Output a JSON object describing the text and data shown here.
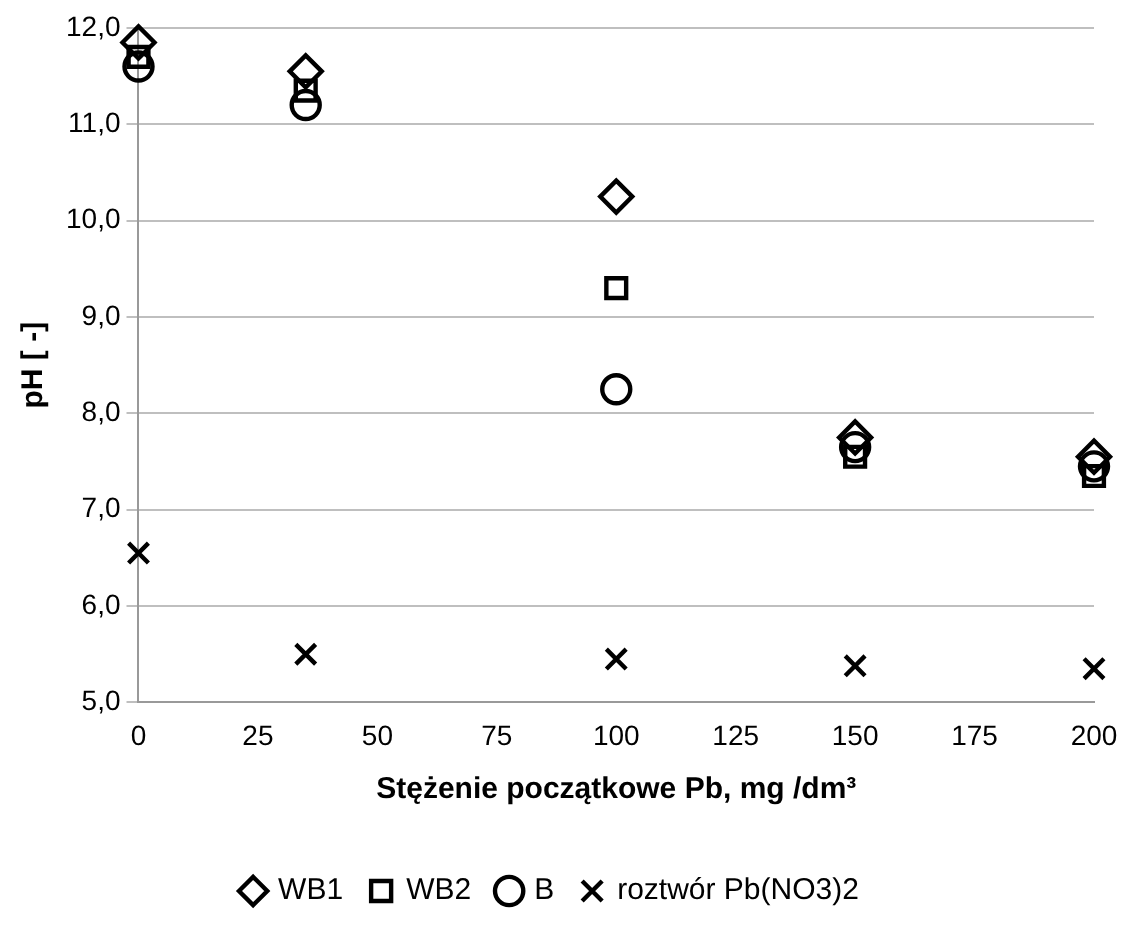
{
  "chart_data": {
    "type": "scatter",
    "xlabel": "Stężenie początkowe Pb, mg /dm³",
    "ylabel": "pH [ -]",
    "x": [
      0,
      35,
      100,
      150,
      200
    ],
    "series": [
      {
        "name": "WB1",
        "color": "#000000",
        "marker": "diamond",
        "values": [
          11.85,
          11.55,
          10.25,
          7.75,
          7.55
        ]
      },
      {
        "name": "WB2",
        "color": "#000000",
        "marker": "square",
        "values": [
          11.7,
          11.35,
          9.3,
          7.55,
          7.35
        ]
      },
      {
        "name": "B",
        "color": "#000000",
        "marker": "circle",
        "values": [
          11.6,
          11.2,
          8.25,
          7.65,
          7.45
        ]
      },
      {
        "name": "roztwór Pb(NO3)2",
        "color": "#000000",
        "marker": "cross",
        "values": [
          6.55,
          5.5,
          5.45,
          5.38,
          5.35
        ]
      }
    ],
    "xlim": [
      0,
      200
    ],
    "xticks": [
      0,
      25,
      50,
      75,
      100,
      125,
      150,
      175,
      200
    ],
    "ylim": [
      5,
      12
    ],
    "yticks": [
      {
        "value": 5,
        "label": "5,0"
      },
      {
        "value": 6,
        "label": "6,0"
      },
      {
        "value": 7,
        "label": "7,0"
      },
      {
        "value": 8,
        "label": "8,0"
      },
      {
        "value": 9,
        "label": "9,0"
      },
      {
        "value": 10,
        "label": "10,0"
      },
      {
        "value": 11,
        "label": "11,0"
      },
      {
        "value": 12,
        "label": "12,0"
      }
    ],
    "grid": "y",
    "legend": "bottom"
  }
}
